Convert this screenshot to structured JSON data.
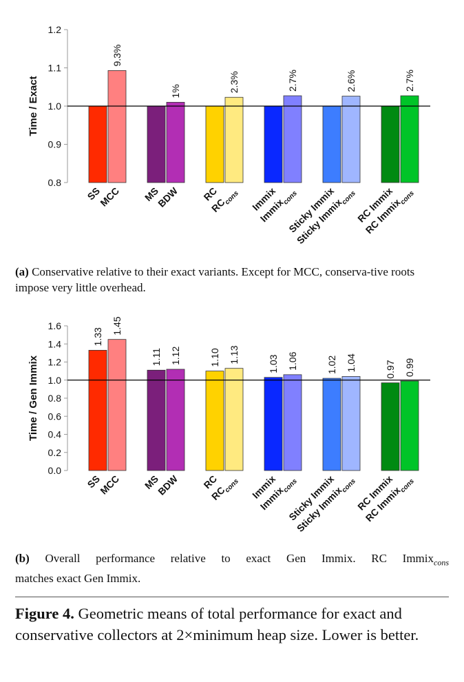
{
  "colors": [
    "#ff2a00",
    "#ff8080",
    "#7b1f7b",
    "#b22eb4",
    "#ffd200",
    "#ffea80",
    "#0a28ff",
    "#8080ff",
    "#3d7dff",
    "#9fb6ff",
    "#008a12",
    "#00c428"
  ],
  "chart_data": [
    {
      "type": "bar",
      "ylabel": "Time / Exact",
      "ylim": [
        0.8,
        1.2
      ],
      "yticks": [
        "0.8",
        "0.9",
        "1.0",
        "1.1",
        "1.2"
      ],
      "reference_line": 1.0,
      "categories": [
        {
          "label": "SS",
          "sub": ""
        },
        {
          "label": "MCC",
          "sub": ""
        },
        {
          "label": "MS",
          "sub": ""
        },
        {
          "label": "BDW",
          "sub": ""
        },
        {
          "label": "RC",
          "sub": ""
        },
        {
          "label": "RC",
          "sub": "cons"
        },
        {
          "label": "Immix",
          "sub": ""
        },
        {
          "label": "Immix",
          "sub": "cons"
        },
        {
          "label": "Sticky Immix",
          "sub": ""
        },
        {
          "label": "Sticky Immix",
          "sub": "cons"
        },
        {
          "label": "RC Immix",
          "sub": ""
        },
        {
          "label": "RC Immix",
          "sub": "cons"
        }
      ],
      "values": [
        1.0,
        1.093,
        1.0,
        1.01,
        1.0,
        1.023,
        1.0,
        1.027,
        1.0,
        1.026,
        1.0,
        1.027
      ],
      "data_labels": [
        "",
        "9.3%",
        "",
        "1%",
        "",
        "2.3%",
        "",
        "2.7%",
        "",
        "2.6%",
        "",
        "2.7%"
      ]
    },
    {
      "type": "bar",
      "ylabel": "Time / Gen Immix",
      "ylim": [
        0.0,
        1.6
      ],
      "yticks": [
        "0.0",
        "0.2",
        "0.4",
        "0.6",
        "0.8",
        "1.0",
        "1.2",
        "1.4",
        "1.6"
      ],
      "reference_line": 1.0,
      "categories": [
        {
          "label": "SS",
          "sub": ""
        },
        {
          "label": "MCC",
          "sub": ""
        },
        {
          "label": "MS",
          "sub": ""
        },
        {
          "label": "BDW",
          "sub": ""
        },
        {
          "label": "RC",
          "sub": ""
        },
        {
          "label": "RC",
          "sub": "cons"
        },
        {
          "label": "Immix",
          "sub": ""
        },
        {
          "label": "Immix",
          "sub": "cons"
        },
        {
          "label": "Sticky Immix",
          "sub": ""
        },
        {
          "label": "Sticky Immix",
          "sub": "cons"
        },
        {
          "label": "RC Immix",
          "sub": ""
        },
        {
          "label": "RC Immix",
          "sub": "cons"
        }
      ],
      "values": [
        1.33,
        1.45,
        1.11,
        1.12,
        1.1,
        1.13,
        1.03,
        1.06,
        1.02,
        1.04,
        0.97,
        0.99
      ],
      "data_labels": [
        "1.33",
        "1.45",
        "1.11",
        "1.12",
        "1.10",
        "1.13",
        "1.03",
        "1.06",
        "1.02",
        "1.04",
        "0.97",
        "0.99"
      ]
    }
  ],
  "captions": {
    "a_label": "(a)",
    "a_text": " Conservative relative to their exact variants. Except for MCC, conserva-tive roots impose very little overhead.",
    "b_label": "(b)",
    "b_line1": " Overall performance relative to exact Gen Immix. RC Immix",
    "b_sub": "cons",
    "b_line2": "matches exact Gen Immix."
  },
  "figure_caption": {
    "label": "Figure 4.",
    "text": " Geometric means of total performance for exact and conservative collectors at 2×minimum heap size. Lower is better."
  }
}
